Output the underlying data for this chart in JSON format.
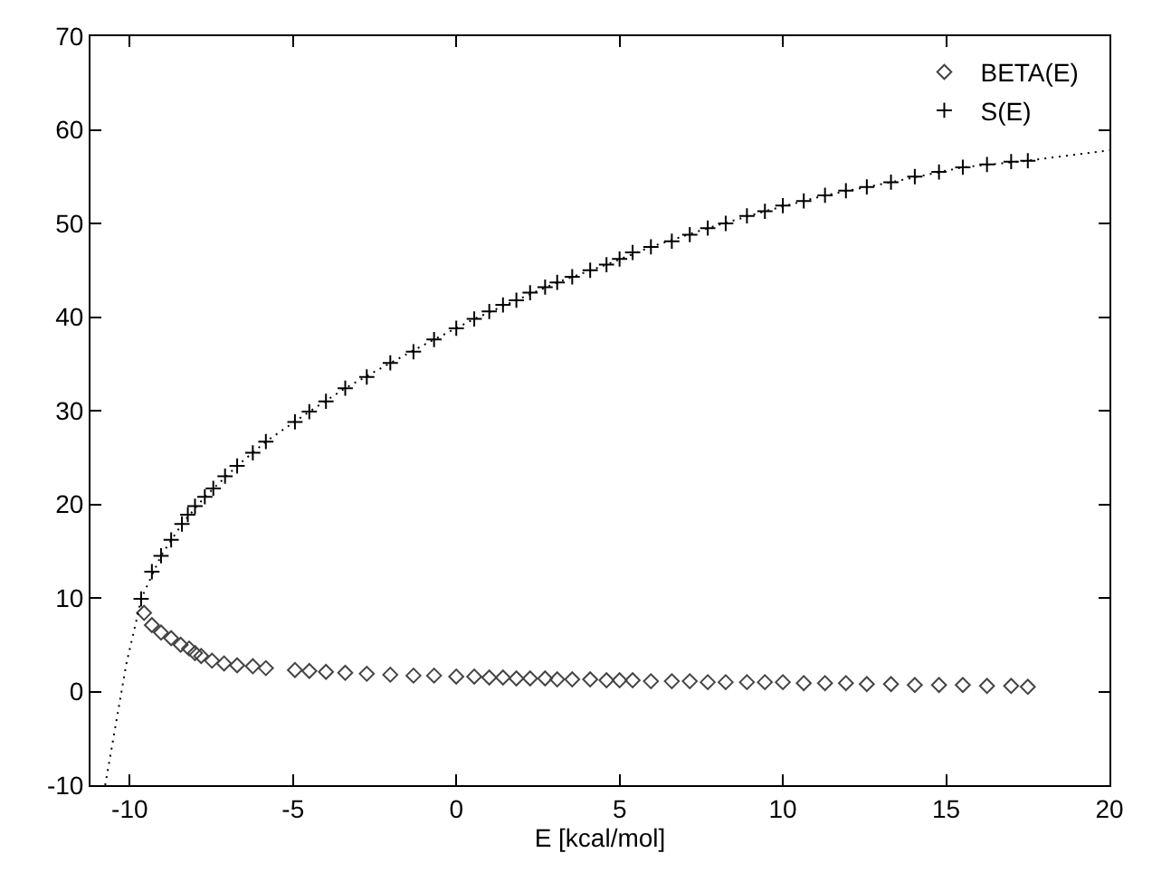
{
  "chart_data": {
    "type": "scatter",
    "xlabel": "E [kcal/mol]",
    "xlim": [
      -11.2,
      20
    ],
    "ylim": [
      -10,
      70
    ],
    "xticks": [
      -10,
      -5,
      0,
      5,
      10,
      15,
      20
    ],
    "yticks": [
      -10,
      0,
      10,
      20,
      30,
      40,
      50,
      60,
      70
    ],
    "legend": "top right",
    "series": [
      {
        "name": "BETA(E)",
        "color": "#444444",
        "marker": "diamond",
        "x": [
          -9.56,
          -9.32,
          -9.04,
          -8.73,
          -8.44,
          -8.18,
          -8.0,
          -7.81,
          -7.48,
          -7.11,
          -6.71,
          -6.23,
          -5.83,
          -4.94,
          -4.5,
          -3.99,
          -3.4,
          -2.74,
          -2.02,
          -1.31,
          -0.68,
          0,
          0.55,
          1.01,
          1.43,
          1.84,
          2.26,
          2.72,
          3.09,
          3.55,
          4.1,
          4.6,
          5.0,
          5.4,
          5.96,
          6.6,
          7.15,
          7.7,
          8.25,
          8.9,
          9.45,
          10.0,
          10.64,
          11.29,
          11.93,
          12.57,
          13.31,
          14.04,
          14.78,
          15.51,
          16.25,
          16.99,
          17.5
        ],
        "values": [
          8.4,
          7.1,
          6.3,
          5.7,
          5.0,
          4.6,
          4.1,
          3.8,
          3.3,
          3.0,
          2.8,
          2.7,
          2.5,
          2.3,
          2.2,
          2.1,
          2.0,
          1.9,
          1.8,
          1.7,
          1.7,
          1.6,
          1.6,
          1.5,
          1.5,
          1.4,
          1.4,
          1.4,
          1.3,
          1.3,
          1.3,
          1.2,
          1.2,
          1.2,
          1.1,
          1.1,
          1.1,
          1.0,
          1.0,
          1.0,
          1.0,
          1.0,
          0.9,
          0.9,
          0.9,
          0.8,
          0.8,
          0.7,
          0.7,
          0.7,
          0.6,
          0.6,
          0.5
        ]
      },
      {
        "name": "S(E)",
        "color": "#000000",
        "marker": "cross",
        "x": [
          -9.65,
          -9.32,
          -9.04,
          -8.73,
          -8.4,
          -8.22,
          -8.0,
          -7.7,
          -7.44,
          -7.08,
          -6.71,
          -6.23,
          -5.83,
          -4.94,
          -4.5,
          -3.99,
          -3.4,
          -2.74,
          -2.02,
          -1.31,
          -0.68,
          0,
          0.55,
          1.01,
          1.43,
          1.84,
          2.26,
          2.72,
          3.09,
          3.55,
          4.1,
          4.6,
          5.0,
          5.4,
          5.96,
          6.6,
          7.15,
          7.7,
          8.25,
          8.9,
          9.45,
          10.0,
          10.64,
          11.29,
          11.93,
          12.57,
          13.31,
          14.04,
          14.78,
          15.51,
          16.25,
          16.99,
          17.5
        ],
        "values": [
          9.9,
          12.8,
          14.5,
          16.2,
          17.9,
          18.9,
          19.8,
          20.8,
          21.7,
          23.0,
          24.1,
          25.5,
          26.7,
          28.8,
          29.9,
          31.0,
          32.4,
          33.6,
          35.1,
          36.3,
          37.6,
          38.8,
          39.8,
          40.6,
          41.3,
          41.8,
          42.6,
          43.2,
          43.7,
          44.3,
          45.0,
          45.6,
          46.2,
          46.9,
          47.5,
          48.1,
          48.8,
          49.5,
          50.0,
          50.8,
          51.3,
          51.9,
          52.4,
          53.0,
          53.5,
          53.9,
          54.4,
          55.0,
          55.5,
          56.0,
          56.3,
          56.6,
          56.7
        ]
      },
      {
        "type": "line",
        "color": "#000000",
        "marker": "none",
        "line_style": "dotted",
        "x": [
          -10.75,
          -10.4,
          -10.1,
          -9.8,
          -9.65,
          -9.04,
          -8.4,
          -7.7,
          -6.71,
          -5.83,
          -4.5,
          -3.4,
          -2.02,
          -0.68,
          0.55,
          1.84,
          3.09,
          4.6,
          5.96,
          7.7,
          9.45,
          11.29,
          13.31,
          15.51,
          17.5,
          20
        ],
        "values": [
          -10,
          -3,
          3,
          7.5,
          9.9,
          14.5,
          17.9,
          20.8,
          24.1,
          26.7,
          29.9,
          32.4,
          35.1,
          37.6,
          39.8,
          41.8,
          43.7,
          45.6,
          47.5,
          49.5,
          51.3,
          53.0,
          54.4,
          56.0,
          56.7,
          57.8
        ]
      }
    ]
  }
}
